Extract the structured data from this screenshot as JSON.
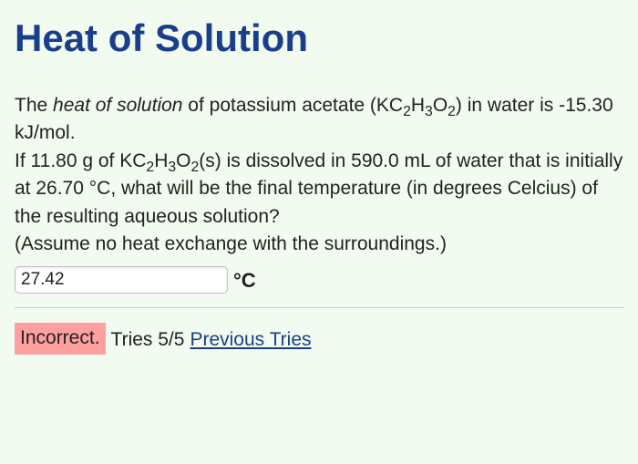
{
  "page": {
    "title": "Heat of Solution",
    "background_color": "#f2fbf0",
    "title_color": "#1a3e8c"
  },
  "problem": {
    "term_italic": "heat of solution",
    "compound_name": "potassium acetate",
    "formula_plain": "KC2H3O2",
    "delta_h_line_prefix": "The ",
    "delta_h_line_mid1": " of ",
    "delta_h_line_mid2": " (",
    "delta_h_line_mid3": ") in water is ",
    "delta_h": "-15.30 kJ/mol",
    "delta_h_line_suffix": ".",
    "mass": "11.80",
    "mass_unit": "g",
    "state": "(s)",
    "volume": "590.0",
    "volume_unit": "mL",
    "t_initial": "26.70",
    "t_unit_inline": "°C",
    "q_line_prefix": "If ",
    "q_line_mid1": " of ",
    "q_line_mid2": " is dissolved in ",
    "q_line_mid3": " of water that is initially at ",
    "q_line_mid4": ", what will be the final temperature (in degrees Celcius) of the resulting aqueous solution?",
    "assume_line": "(Assume no heat exchange with the surroundings.)"
  },
  "answer": {
    "value": "27.42",
    "unit": "°C"
  },
  "feedback": {
    "badge": "Incorrect.",
    "badge_bg": "#ff9f9f",
    "tries_label": "Tries 5/5",
    "attempts_used": 5,
    "attempts_max": 5,
    "prev_link": "Previous Tries",
    "link_color": "#1a3e8c"
  }
}
